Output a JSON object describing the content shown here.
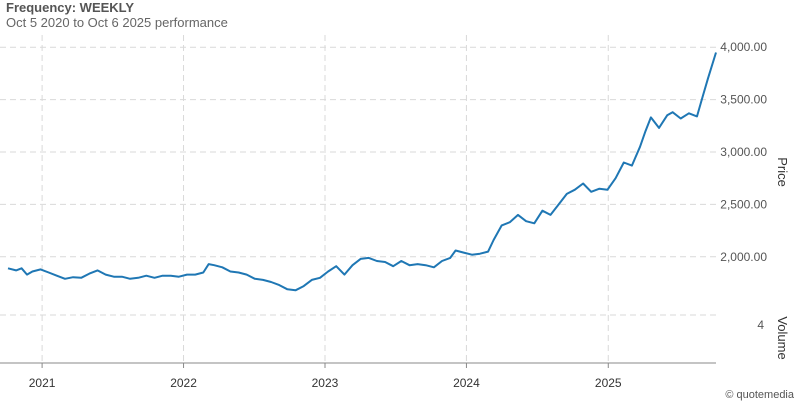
{
  "header": {
    "title": "Frequency: WEEKLY",
    "subtitle": "Oct 5 2020 to Oct 6 2025 performance"
  },
  "credit": "© quotemedia",
  "chart_data": {
    "type": "line",
    "title": "Frequency: WEEKLY",
    "subtitle": "Oct 5 2020 to Oct 6 2025 performance",
    "ylabel": "Price",
    "volume_label": "Volume",
    "volume_tick": "4",
    "ylim": [
      1750,
      4050
    ],
    "xlim": [
      "2020-10-05",
      "2025-10-06"
    ],
    "y_ticks": [
      {
        "value": 2000,
        "label": "2,000.00"
      },
      {
        "value": 2500,
        "label": "2,500.00"
      },
      {
        "value": 3000,
        "label": "3,000.00"
      },
      {
        "value": 3500,
        "label": "3,500.00"
      },
      {
        "value": 4000,
        "label": "4,000.00"
      }
    ],
    "x_ticks": [
      {
        "date": "2021-01-01",
        "label": "2021"
      },
      {
        "date": "2022-01-01",
        "label": "2022"
      },
      {
        "date": "2023-01-01",
        "label": "2023"
      },
      {
        "date": "2024-01-01",
        "label": "2024"
      },
      {
        "date": "2025-01-01",
        "label": "2025"
      }
    ],
    "grid": true,
    "series_color": "#1f77b4",
    "series": [
      {
        "name": "",
        "points": [
          [
            "2020-10-05",
            1890
          ],
          [
            "2020-10-26",
            1870
          ],
          [
            "2020-11-09",
            1890
          ],
          [
            "2020-11-23",
            1830
          ],
          [
            "2020-12-07",
            1860
          ],
          [
            "2020-12-28",
            1880
          ],
          [
            "2021-01-18",
            1850
          ],
          [
            "2021-02-08",
            1820
          ],
          [
            "2021-03-01",
            1790
          ],
          [
            "2021-03-22",
            1805
          ],
          [
            "2021-04-12",
            1800
          ],
          [
            "2021-05-03",
            1840
          ],
          [
            "2021-05-24",
            1870
          ],
          [
            "2021-06-14",
            1830
          ],
          [
            "2021-07-05",
            1810
          ],
          [
            "2021-07-26",
            1810
          ],
          [
            "2021-08-16",
            1790
          ],
          [
            "2021-09-06",
            1800
          ],
          [
            "2021-09-27",
            1820
          ],
          [
            "2021-10-18",
            1800
          ],
          [
            "2021-11-08",
            1820
          ],
          [
            "2021-11-29",
            1820
          ],
          [
            "2021-12-20",
            1810
          ],
          [
            "2022-01-10",
            1830
          ],
          [
            "2022-01-31",
            1830
          ],
          [
            "2022-02-21",
            1850
          ],
          [
            "2022-03-07",
            1930
          ],
          [
            "2022-03-21",
            1920
          ],
          [
            "2022-04-11",
            1900
          ],
          [
            "2022-05-02",
            1860
          ],
          [
            "2022-05-23",
            1850
          ],
          [
            "2022-06-13",
            1830
          ],
          [
            "2022-07-04",
            1790
          ],
          [
            "2022-07-25",
            1780
          ],
          [
            "2022-08-15",
            1760
          ],
          [
            "2022-09-05",
            1730
          ],
          [
            "2022-09-26",
            1690
          ],
          [
            "2022-10-17",
            1680
          ],
          [
            "2022-11-07",
            1720
          ],
          [
            "2022-11-28",
            1780
          ],
          [
            "2022-12-19",
            1800
          ],
          [
            "2023-01-09",
            1860
          ],
          [
            "2023-01-30",
            1910
          ],
          [
            "2023-02-20",
            1830
          ],
          [
            "2023-03-13",
            1920
          ],
          [
            "2023-04-03",
            1980
          ],
          [
            "2023-04-24",
            1990
          ],
          [
            "2023-05-15",
            1960
          ],
          [
            "2023-06-05",
            1950
          ],
          [
            "2023-06-26",
            1910
          ],
          [
            "2023-07-17",
            1960
          ],
          [
            "2023-08-07",
            1920
          ],
          [
            "2023-08-28",
            1930
          ],
          [
            "2023-09-18",
            1920
          ],
          [
            "2023-10-09",
            1900
          ],
          [
            "2023-10-30",
            1960
          ],
          [
            "2023-11-20",
            1990
          ],
          [
            "2023-12-04",
            2060
          ],
          [
            "2023-12-25",
            2040
          ],
          [
            "2024-01-15",
            2020
          ],
          [
            "2024-02-05",
            2030
          ],
          [
            "2024-02-26",
            2050
          ],
          [
            "2024-03-11",
            2160
          ],
          [
            "2024-04-01",
            2300
          ],
          [
            "2024-04-22",
            2330
          ],
          [
            "2024-05-13",
            2400
          ],
          [
            "2024-06-03",
            2340
          ],
          [
            "2024-06-24",
            2320
          ],
          [
            "2024-07-15",
            2440
          ],
          [
            "2024-08-05",
            2400
          ],
          [
            "2024-08-26",
            2500
          ],
          [
            "2024-09-16",
            2600
          ],
          [
            "2024-10-07",
            2640
          ],
          [
            "2024-10-28",
            2700
          ],
          [
            "2024-11-18",
            2620
          ],
          [
            "2024-12-09",
            2650
          ],
          [
            "2024-12-30",
            2640
          ],
          [
            "2025-01-20",
            2750
          ],
          [
            "2025-02-10",
            2900
          ],
          [
            "2025-03-03",
            2870
          ],
          [
            "2025-03-24",
            3050
          ],
          [
            "2025-04-07",
            3200
          ],
          [
            "2025-04-21",
            3330
          ],
          [
            "2025-05-12",
            3230
          ],
          [
            "2025-06-02",
            3350
          ],
          [
            "2025-06-16",
            3380
          ],
          [
            "2025-07-07",
            3320
          ],
          [
            "2025-07-28",
            3370
          ],
          [
            "2025-08-18",
            3340
          ],
          [
            "2025-09-01",
            3520
          ],
          [
            "2025-09-15",
            3700
          ],
          [
            "2025-10-06",
            3950
          ]
        ]
      }
    ]
  }
}
